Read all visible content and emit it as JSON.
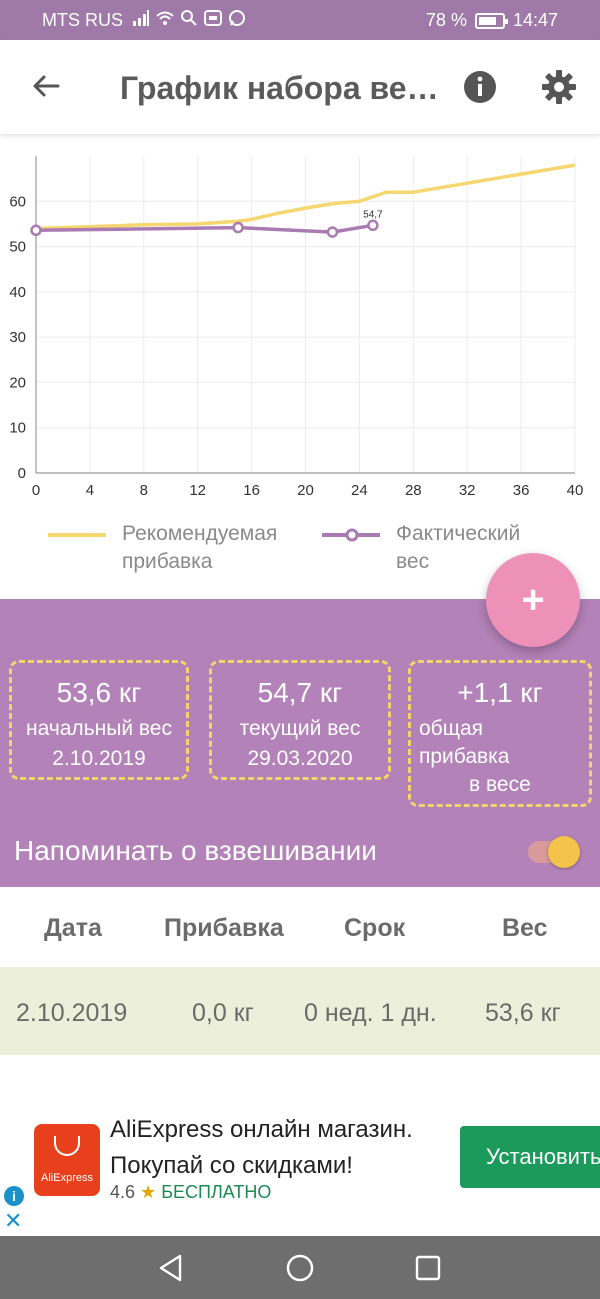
{
  "status_bar": {
    "carrier": "MTS RUS",
    "battery_text": "78 %",
    "battery_level": 0.78,
    "time": "14:47",
    "icons": [
      "signal-icon",
      "wifi-icon",
      "search-icon",
      "momlife-icon",
      "whatsapp-icon"
    ]
  },
  "app_bar": {
    "title": "График набора ве…",
    "icons": [
      "back-arrow-icon",
      "info-icon",
      "gear-icon"
    ]
  },
  "colors": {
    "accent": "#b382b8",
    "recommended_line": "#f6d66e",
    "actual_line": "#a97bb2",
    "fab": "#ee91b9",
    "dashed_border": "#f3d36b"
  },
  "chart_data": {
    "type": "line",
    "xlim": [
      0,
      40
    ],
    "ylim": [
      0,
      70
    ],
    "x_ticks": [
      "0",
      "4",
      "8",
      "12",
      "16",
      "20",
      "24",
      "28",
      "32",
      "36",
      "40"
    ],
    "y_ticks": [
      "0",
      "10",
      "20",
      "30",
      "40",
      "50",
      "60"
    ],
    "grid": true,
    "legend_position": "bottom",
    "series": [
      {
        "name": "Рекомендуемая прибавка",
        "points": [
          [
            0,
            54
          ],
          [
            8,
            54.8
          ],
          [
            12,
            55
          ],
          [
            15,
            55.6
          ],
          [
            16,
            56
          ],
          [
            18,
            57.4
          ],
          [
            20,
            58.5
          ],
          [
            22,
            59.5
          ],
          [
            24,
            60
          ],
          [
            26,
            62
          ],
          [
            28,
            62
          ],
          [
            32,
            64
          ],
          [
            36,
            66
          ],
          [
            40,
            68
          ]
        ]
      },
      {
        "name": "Фактический вес",
        "points": [
          [
            0,
            53.6
          ],
          [
            15,
            54.2
          ],
          [
            22,
            53.2
          ],
          [
            25,
            54.7
          ]
        ],
        "data_label": "54,7"
      }
    ]
  },
  "legend": {
    "recommended": "Рекомендуемая прибавка",
    "actual": "Фактический вес"
  },
  "fab": {
    "label": "+"
  },
  "summary": {
    "start": {
      "value": "53,6 кг",
      "label": "начальный вес",
      "date": "2.10.2019"
    },
    "current": {
      "value": "54,7 кг",
      "label": "текущий вес",
      "date": "29.03.2020"
    },
    "total": {
      "value": "+1,1 кг",
      "label_line1": "общая",
      "label_line2": "прибавка",
      "label_line3": "в весе"
    },
    "reminder_label": "Напоминать о взвешивании",
    "reminder_on": true
  },
  "table": {
    "headers": [
      "Дата",
      "Прибавка",
      "Срок",
      "Вес"
    ],
    "rows": [
      [
        "2.10.2019",
        "0,0 кг",
        "0 нед. 1 дн.",
        "53,6 кг"
      ]
    ]
  },
  "ad": {
    "title": "AliExpress онлайн магазин.",
    "subtitle": "Покупай со скидками!",
    "rating": "4.6",
    "star": "★",
    "price": "БЕСПЛАТНО",
    "install_label": "Установить",
    "logo_text": "AliExpress"
  },
  "nav_bar": {
    "icons": [
      "back-triangle-icon",
      "home-circle-icon",
      "recents-square-icon"
    ]
  }
}
